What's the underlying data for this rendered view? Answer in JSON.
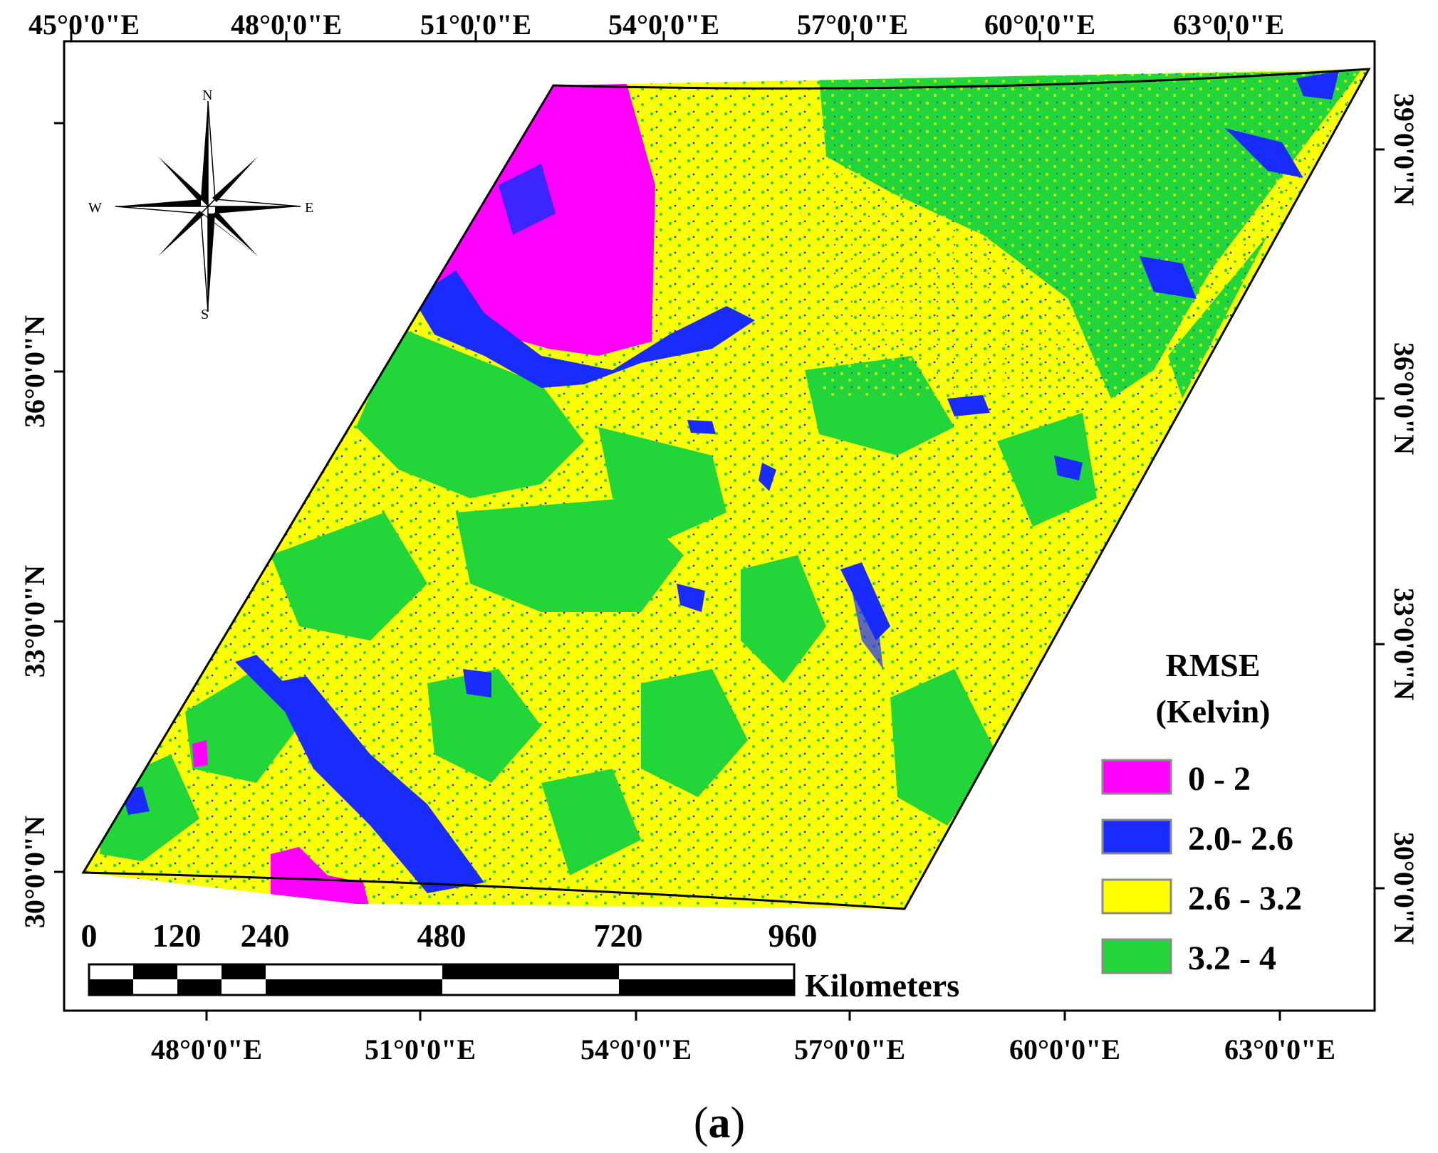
{
  "map": {
    "top_longitudes": [
      "45°0'0\"E",
      "48°0'0\"E",
      "51°0'0\"E",
      "54°0'0\"E",
      "57°0'0\"E",
      "60°0'0\"E",
      "63°0'0\"E"
    ],
    "bottom_longitudes": [
      "48°0'0\"E",
      "51°0'0\"E",
      "54°0'0\"E",
      "57°0'0\"E",
      "60°0'0\"E",
      "63°0'0\"E"
    ],
    "left_latitudes": [
      "36°0'0\"N",
      "33°0'0\"N",
      "30°0'0\"N"
    ],
    "right_latitudes": [
      "39°0'0\"N",
      "36°0'0\"N",
      "33°0'0\"N",
      "30°0'0\"N"
    ]
  },
  "compass": {
    "n": "N",
    "s": "S",
    "e": "E",
    "w": "W"
  },
  "scale_bar": {
    "ticks": [
      "0",
      "120",
      "240",
      "480",
      "720",
      "960"
    ],
    "unit": "Kilometers"
  },
  "legend": {
    "title_line1": "RMSE",
    "title_line2": "(Kelvin)",
    "items": [
      {
        "label": "0 - 2",
        "color": "#ff00ff"
      },
      {
        "label": "2.0- 2.6",
        "color": "#1a2bff"
      },
      {
        "label": "2.6 - 3.2",
        "color": "#ffff00"
      },
      {
        "label": "3.2 - 4",
        "color": "#22d63a"
      }
    ]
  },
  "caption": {
    "open": "(",
    "letter": "a",
    "close": ")"
  },
  "colors": {
    "magenta": "#ff00ff",
    "blue": "#1a2bff",
    "yellow": "#ffff00",
    "green": "#22d63a"
  }
}
